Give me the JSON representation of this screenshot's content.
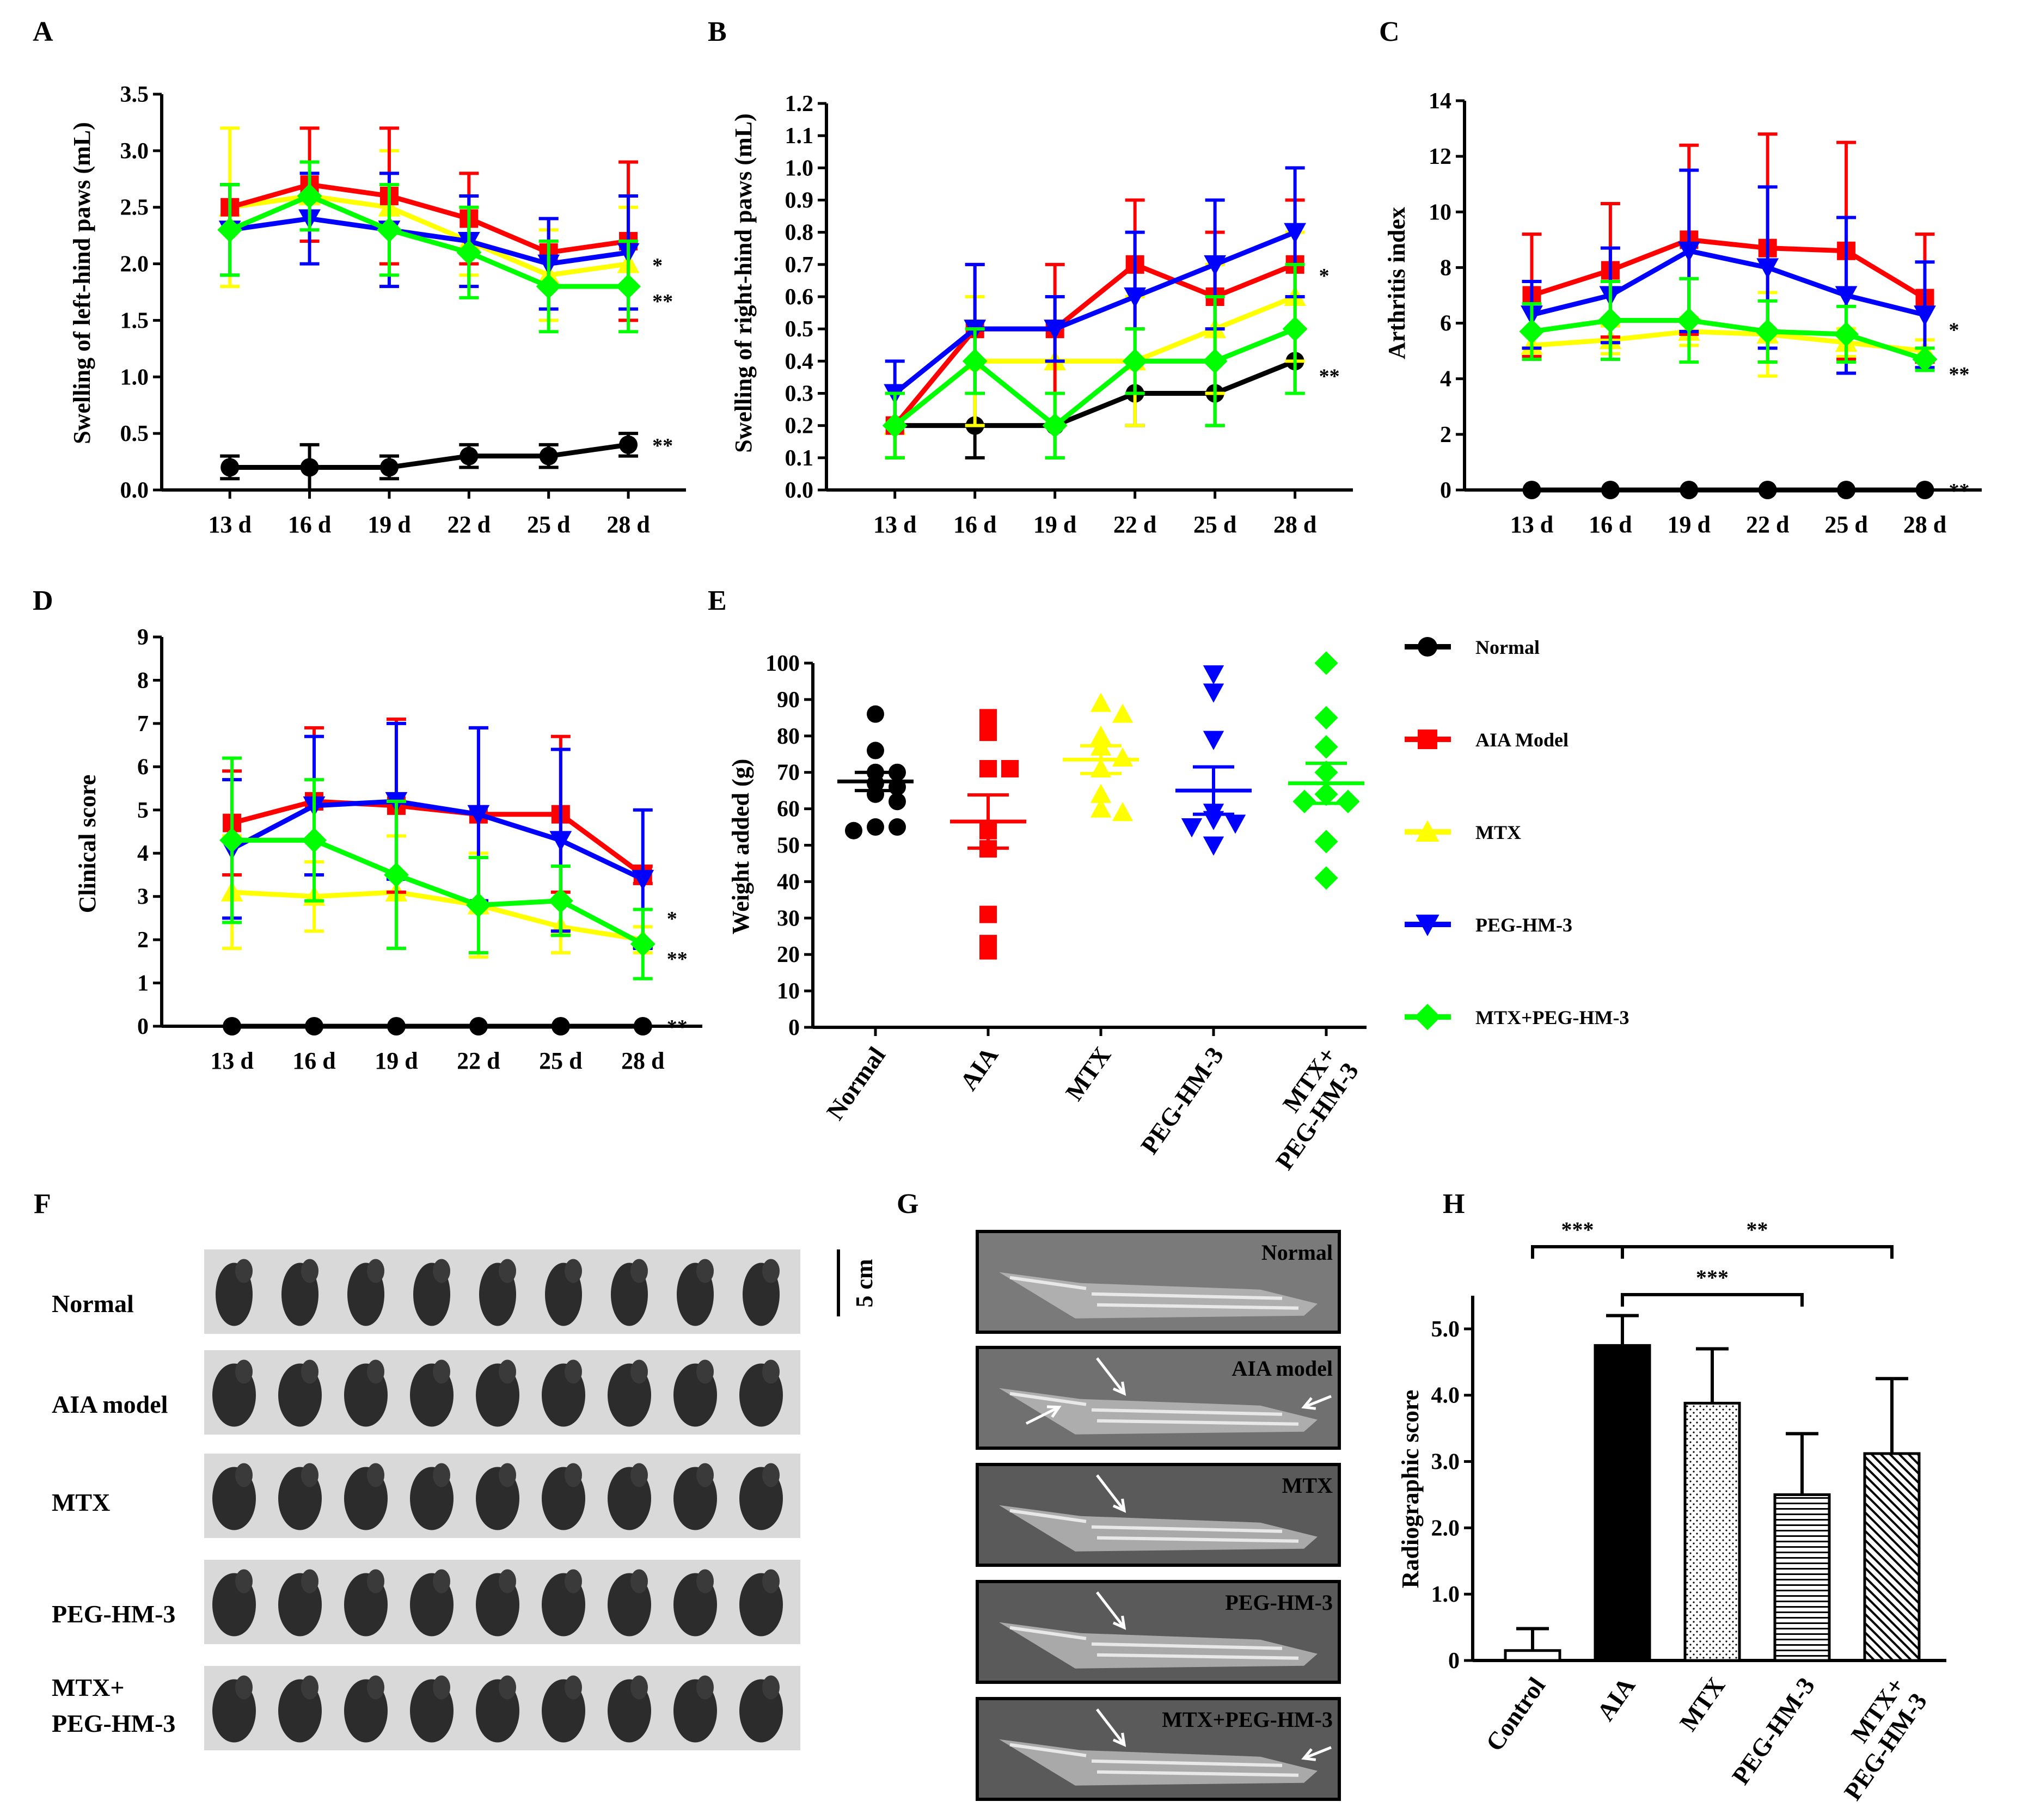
{
  "colors": {
    "normal": "#000000",
    "aia": "#ff0000",
    "mtx": "#ffff00",
    "peg": "#0000ff",
    "combo": "#00ff00"
  },
  "legend": [
    {
      "label": "Normal",
      "color": "#000000",
      "marker": "circle"
    },
    {
      "label": "AIA Model",
      "color": "#ff0000",
      "marker": "square"
    },
    {
      "label": "MTX",
      "color": "#ffff00",
      "marker": "triangle-up"
    },
    {
      "label": "PEG-HM-3",
      "color": "#0000ff",
      "marker": "triangle-down"
    },
    {
      "label": "MTX+PEG-HM-3",
      "color": "#00ff00",
      "marker": "diamond"
    }
  ],
  "panel_f": {
    "letter": "F",
    "rows": [
      "Normal",
      "AIA model",
      "MTX",
      "PEG-HM-3",
      "MTX+\nPEG-HM-3"
    ],
    "scale_label": "5 cm",
    "paws_per_row": 9
  },
  "panel_g": {
    "letter": "G",
    "images": [
      {
        "label": "Normal",
        "arrows": []
      },
      {
        "label": "AIA model",
        "arrows": [
          "top",
          "left",
          "right"
        ]
      },
      {
        "label": "MTX",
        "arrows": [
          "top"
        ]
      },
      {
        "label": "PEG-HM-3",
        "arrows": [
          "top"
        ]
      },
      {
        "label": "MTX+PEG-HM-3",
        "arrows": [
          "top",
          "right"
        ]
      }
    ]
  },
  "chart_data": [
    {
      "panel": "A",
      "type": "line",
      "ylabel": "Swelling of left-hind paws (mL)",
      "categories": [
        "13 d",
        "16 d",
        "19 d",
        "22 d",
        "25 d",
        "28 d"
      ],
      "ylim": [
        0,
        3.5
      ],
      "yticks": [
        "0.0",
        "0.5",
        "1.0",
        "1.5",
        "2.0",
        "2.5",
        "3.0",
        "3.5"
      ],
      "series": [
        {
          "name": "Normal",
          "values": [
            0.2,
            0.2,
            0.2,
            0.3,
            0.3,
            0.4
          ],
          "err": [
            0.1,
            0.2,
            0.1,
            0.1,
            0.1,
            0.1
          ]
        },
        {
          "name": "AIA Model",
          "values": [
            2.5,
            2.7,
            2.6,
            2.4,
            2.1,
            2.2
          ],
          "err": [
            0.2,
            0.5,
            0.6,
            0.4,
            0.3,
            0.7
          ]
        },
        {
          "name": "MTX",
          "values": [
            2.5,
            2.6,
            2.5,
            2.2,
            1.9,
            2.0
          ],
          "err": [
            0.7,
            0.6,
            0.5,
            0.3,
            0.4,
            0.5
          ]
        },
        {
          "name": "PEG-HM-3",
          "values": [
            2.3,
            2.4,
            2.3,
            2.2,
            2.0,
            2.1
          ],
          "err": [
            0.4,
            0.4,
            0.5,
            0.4,
            0.4,
            0.5
          ]
        },
        {
          "name": "MTX+PEG-HM-3",
          "values": [
            2.3,
            2.6,
            2.3,
            2.1,
            1.8,
            1.8
          ],
          "err": [
            0.4,
            0.3,
            0.4,
            0.4,
            0.4,
            0.4
          ]
        }
      ],
      "annotations": [
        {
          "series": "MTX+PEG-HM-3",
          "text": "*"
        },
        {
          "series": "MTX+PEG-HM-3",
          "text": "**"
        },
        {
          "series": "Normal",
          "text": "**"
        }
      ]
    },
    {
      "panel": "B",
      "type": "line",
      "ylabel": "Swelling of right-hind paws (mL)",
      "categories": [
        "13 d",
        "16 d",
        "19 d",
        "22 d",
        "25 d",
        "28 d"
      ],
      "ylim": [
        0,
        1.2
      ],
      "yticks": [
        "0.0",
        "0.1",
        "0.2",
        "0.3",
        "0.4",
        "0.5",
        "0.6",
        "0.7",
        "0.8",
        "0.9",
        "1.0",
        "1.1",
        "1.2"
      ],
      "series": [
        {
          "name": "Normal",
          "values": [
            0.2,
            0.2,
            0.2,
            0.3,
            0.3,
            0.4
          ],
          "err": [
            0.1,
            0.1,
            0.1,
            0.1,
            0.1,
            0.1
          ]
        },
        {
          "name": "AIA Model",
          "values": [
            0.2,
            0.5,
            0.5,
            0.7,
            0.6,
            0.7
          ],
          "err": [
            0.1,
            0.2,
            0.2,
            0.2,
            0.2,
            0.2
          ]
        },
        {
          "name": "MTX",
          "values": [
            0.2,
            0.4,
            0.4,
            0.4,
            0.5,
            0.6
          ],
          "err": [
            0.1,
            0.2,
            0.2,
            0.2,
            0.2,
            0.2
          ]
        },
        {
          "name": "PEG-HM-3",
          "values": [
            0.3,
            0.5,
            0.5,
            0.6,
            0.7,
            0.8
          ],
          "err": [
            0.1,
            0.2,
            0.1,
            0.2,
            0.2,
            0.2
          ]
        },
        {
          "name": "MTX+PEG-HM-3",
          "values": [
            0.2,
            0.4,
            0.2,
            0.4,
            0.4,
            0.5
          ],
          "err": [
            0.1,
            0.1,
            0.1,
            0.1,
            0.2,
            0.2
          ]
        }
      ],
      "annotations": [
        {
          "series": "MTX",
          "text": "*"
        },
        {
          "series": "Normal",
          "text": "**"
        }
      ]
    },
    {
      "panel": "C",
      "type": "line",
      "ylabel": "Arthritis index",
      "categories": [
        "13 d",
        "16 d",
        "19 d",
        "22 d",
        "25 d",
        "28 d"
      ],
      "ylim": [
        0,
        14
      ],
      "yticks": [
        "0",
        "2",
        "4",
        "6",
        "8",
        "10",
        "12",
        "14"
      ],
      "series": [
        {
          "name": "Normal",
          "values": [
            0,
            0,
            0,
            0,
            0,
            0
          ],
          "err": [
            0,
            0,
            0,
            0,
            0,
            0
          ]
        },
        {
          "name": "AIA Model",
          "values": [
            7.0,
            7.9,
            9.0,
            8.7,
            8.6,
            6.9
          ],
          "err": [
            2.2,
            2.4,
            3.4,
            4.1,
            3.9,
            2.3
          ]
        },
        {
          "name": "MTX",
          "values": [
            5.2,
            5.4,
            5.7,
            5.6,
            5.3,
            5.0
          ],
          "err": [
            0.5,
            0.5,
            0.5,
            1.5,
            0.5,
            0.4
          ]
        },
        {
          "name": "PEG-HM-3",
          "values": [
            6.3,
            7.0,
            8.6,
            8.0,
            7.0,
            6.3
          ],
          "err": [
            1.2,
            1.7,
            2.9,
            2.9,
            2.8,
            1.9
          ]
        },
        {
          "name": "MTX+PEG-HM-3",
          "values": [
            5.7,
            6.1,
            6.1,
            5.7,
            5.6,
            4.7
          ],
          "err": [
            1.0,
            1.4,
            1.5,
            1.1,
            1.0,
            0.4
          ]
        }
      ],
      "annotations": [
        {
          "series": "MTX",
          "text": "*"
        },
        {
          "series": "MTX+PEG-HM-3",
          "text": "**"
        },
        {
          "series": "Normal",
          "text": "**"
        }
      ]
    },
    {
      "panel": "D",
      "type": "line",
      "ylabel": "Clinical score",
      "categories": [
        "13 d",
        "16 d",
        "19 d",
        "22 d",
        "25 d",
        "28 d"
      ],
      "ylim": [
        0,
        9
      ],
      "yticks": [
        "0",
        "1",
        "2",
        "3",
        "4",
        "5",
        "6",
        "7",
        "8",
        "9"
      ],
      "series": [
        {
          "name": "Normal",
          "values": [
            0,
            0,
            0,
            0,
            0,
            0
          ],
          "err": [
            0,
            0,
            0,
            0,
            0,
            0
          ]
        },
        {
          "name": "AIA Model",
          "values": [
            4.7,
            5.2,
            5.1,
            4.9,
            4.9,
            3.5
          ],
          "err": [
            1.2,
            1.7,
            2.0,
            2.0,
            1.8,
            0.2
          ]
        },
        {
          "name": "MTX",
          "values": [
            3.1,
            3.0,
            3.1,
            2.8,
            2.3,
            2.0
          ],
          "err": [
            1.3,
            0.8,
            1.3,
            1.2,
            0.6,
            0.3
          ]
        },
        {
          "name": "PEG-HM-3",
          "values": [
            4.1,
            5.1,
            5.2,
            4.9,
            4.3,
            3.4
          ],
          "err": [
            1.6,
            1.6,
            1.8,
            2.0,
            2.1,
            1.6
          ]
        },
        {
          "name": "MTX+PEG-HM-3",
          "values": [
            4.3,
            4.3,
            3.5,
            2.8,
            2.9,
            1.9
          ],
          "err": [
            1.9,
            1.4,
            1.7,
            1.1,
            0.8,
            0.8
          ]
        }
      ],
      "annotations": [
        {
          "series": "MTX",
          "text": "*"
        },
        {
          "series": "MTX+PEG-HM-3",
          "text": "**"
        },
        {
          "series": "Normal",
          "text": "**"
        }
      ]
    },
    {
      "panel": "E",
      "type": "scatter",
      "ylabel": "Weight added (g)",
      "categories": [
        "Normal",
        "AIA",
        "MTX",
        "PEG-HM-3",
        "MTX+\nPEG-HM-3"
      ],
      "ylim": [
        0,
        100
      ],
      "yticks": [
        "0",
        "10",
        "20",
        "30",
        "40",
        "50",
        "60",
        "70",
        "80",
        "90",
        "100"
      ],
      "series": [
        {
          "name": "Normal",
          "points": [
            86,
            76,
            70,
            70,
            67,
            66,
            64,
            62,
            55,
            55,
            54
          ],
          "mean": 67.5,
          "sem": 2.5
        },
        {
          "name": "AIA",
          "points": [
            85,
            81,
            71,
            71,
            54,
            49,
            31,
            23,
            21
          ],
          "mean": 56.5,
          "sem": 7.3
        },
        {
          "name": "MTX",
          "points": [
            89,
            86,
            80,
            77,
            74,
            71,
            64,
            60,
            59
          ],
          "mean": 73.5,
          "sem": 3.8
        },
        {
          "name": "PEG-HM-3",
          "points": [
            97,
            92,
            79,
            59,
            57,
            56,
            55,
            50
          ],
          "mean": 65,
          "sem": 6.5
        },
        {
          "name": "MTX+PEG-HM-3",
          "points": [
            100,
            85,
            77,
            70,
            64,
            62,
            62,
            51,
            41
          ],
          "mean": 67,
          "sem": 5.5
        }
      ]
    },
    {
      "panel": "H",
      "type": "bar",
      "ylabel": "Radiographic score",
      "categories": [
        "Control",
        "AIA",
        "MTX",
        "PEG-HM-3",
        "MTX+\nPEG-HM-3"
      ],
      "ylim": [
        0,
        5.5
      ],
      "yticks": [
        "0",
        "1.0",
        "2.0",
        "3.0",
        "4.0",
        "5.0"
      ],
      "values": [
        0.15,
        4.75,
        3.88,
        2.5,
        3.12
      ],
      "err": [
        0.33,
        0.45,
        0.82,
        0.92,
        1.13
      ],
      "fills": [
        "white",
        "black",
        "dots",
        "hlines",
        "diag"
      ],
      "significance": [
        {
          "from": 0,
          "to": 1,
          "text": "***"
        },
        {
          "from": 1,
          "to": 4,
          "text": "**"
        },
        {
          "from": 1,
          "to": 3,
          "text": "***"
        }
      ]
    }
  ]
}
